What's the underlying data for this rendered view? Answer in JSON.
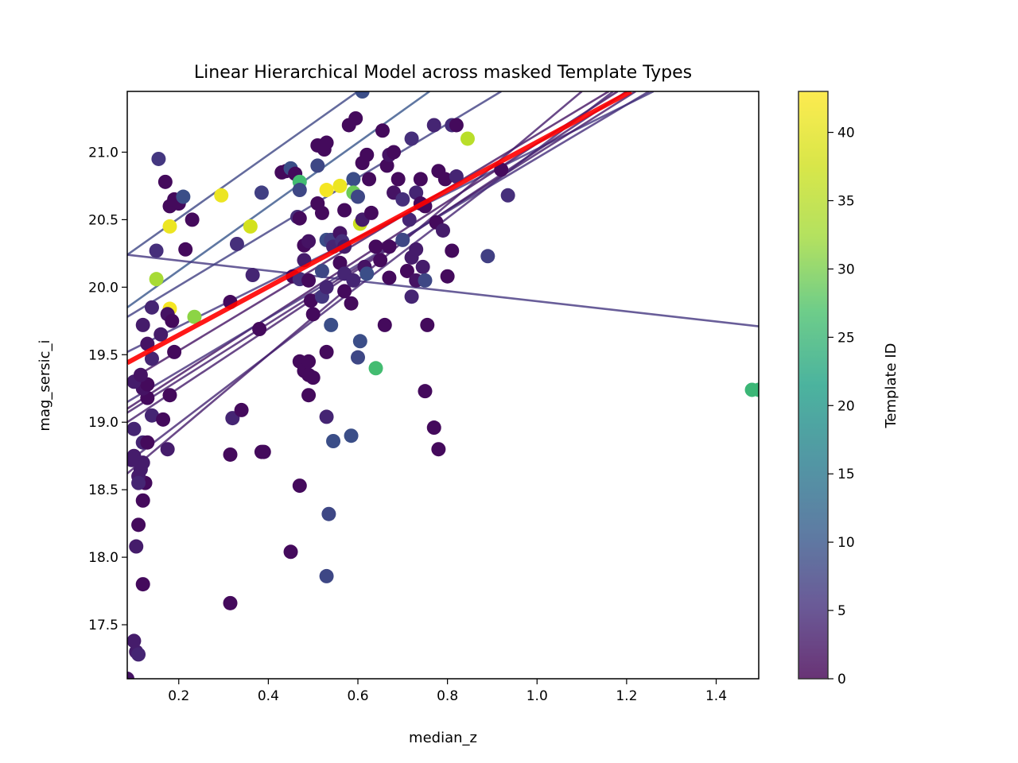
{
  "chart_data": {
    "type": "scatter",
    "title": "Linear Hierarchical Model across masked Template Types",
    "xlabel": "median_z",
    "ylabel": "mag_sersic_i",
    "xlim": [
      0.085,
      1.495
    ],
    "ylim": [
      17.1,
      21.45
    ],
    "xticks": [
      "0.2",
      "0.4",
      "0.6",
      "0.8",
      "1.0",
      "1.2",
      "1.4"
    ],
    "xtick_values": [
      0.2,
      0.4,
      0.6,
      0.8,
      1.0,
      1.2,
      1.4
    ],
    "yticks": [
      "17.5",
      "18.0",
      "18.5",
      "19.0",
      "19.5",
      "20.0",
      "20.5",
      "21.0"
    ],
    "ytick_values": [
      17.5,
      18.0,
      18.5,
      19.0,
      19.5,
      20.0,
      20.5,
      21.0
    ],
    "grid": false,
    "colorbar": {
      "label": "Template ID",
      "min": 0,
      "max": 43,
      "ticks": [
        "0",
        "5",
        "10",
        "15",
        "20",
        "25",
        "30",
        "35",
        "40"
      ],
      "tick_values": [
        0,
        5,
        10,
        15,
        20,
        25,
        30,
        35,
        40
      ],
      "colormap": "viridis"
    },
    "points": [
      [
        0.085,
        17.1,
        2
      ],
      [
        0.1,
        17.38,
        3
      ],
      [
        0.105,
        17.3,
        3
      ],
      [
        0.11,
        17.28,
        4
      ],
      [
        0.12,
        17.8,
        1
      ],
      [
        0.105,
        18.08,
        3
      ],
      [
        0.11,
        18.24,
        1
      ],
      [
        0.12,
        18.42,
        1
      ],
      [
        0.125,
        18.55,
        1
      ],
      [
        0.11,
        18.6,
        3
      ],
      [
        0.115,
        18.65,
        3
      ],
      [
        0.12,
        18.7,
        3
      ],
      [
        0.1,
        18.75,
        3
      ],
      [
        0.095,
        18.72,
        3
      ],
      [
        0.11,
        18.55,
        4
      ],
      [
        0.12,
        18.85,
        4
      ],
      [
        0.13,
        18.85,
        1
      ],
      [
        0.1,
        18.95,
        4
      ],
      [
        0.14,
        19.05,
        4
      ],
      [
        0.13,
        19.18,
        1
      ],
      [
        0.12,
        19.25,
        2
      ],
      [
        0.13,
        19.28,
        1
      ],
      [
        0.1,
        19.3,
        3
      ],
      [
        0.115,
        19.35,
        2
      ],
      [
        0.14,
        19.47,
        4
      ],
      [
        0.13,
        19.58,
        2
      ],
      [
        0.12,
        19.72,
        3
      ],
      [
        0.14,
        19.85,
        4
      ],
      [
        0.15,
        20.27,
        5
      ],
      [
        0.155,
        20.95,
        6
      ],
      [
        0.17,
        20.78,
        1
      ],
      [
        0.18,
        20.45,
        41
      ],
      [
        0.18,
        20.6,
        1
      ],
      [
        0.19,
        20.65,
        1
      ],
      [
        0.2,
        20.62,
        1
      ],
      [
        0.21,
        20.67,
        9
      ],
      [
        0.215,
        20.28,
        1
      ],
      [
        0.23,
        20.5,
        1
      ],
      [
        0.15,
        20.06,
        33
      ],
      [
        0.18,
        19.84,
        42
      ],
      [
        0.175,
        19.8,
        2
      ],
      [
        0.185,
        19.75,
        1
      ],
      [
        0.16,
        19.65,
        3
      ],
      [
        0.19,
        19.52,
        1
      ],
      [
        0.18,
        19.2,
        1
      ],
      [
        0.165,
        19.02,
        1
      ],
      [
        0.175,
        18.8,
        3
      ],
      [
        0.235,
        19.78,
        31
      ],
      [
        0.295,
        20.68,
        41
      ],
      [
        0.315,
        19.89,
        1
      ],
      [
        0.33,
        20.32,
        5
      ],
      [
        0.32,
        19.03,
        4
      ],
      [
        0.34,
        19.09,
        1
      ],
      [
        0.315,
        18.76,
        1
      ],
      [
        0.315,
        17.66,
        1
      ],
      [
        0.36,
        20.45,
        38
      ],
      [
        0.365,
        20.09,
        4
      ],
      [
        0.38,
        19.69,
        1
      ],
      [
        0.385,
        20.7,
        7
      ],
      [
        0.385,
        18.78,
        1
      ],
      [
        0.39,
        18.78,
        1
      ],
      [
        0.43,
        20.85,
        1
      ],
      [
        0.44,
        20.86,
        1
      ],
      [
        0.45,
        20.88,
        9
      ],
      [
        0.46,
        20.84,
        1
      ],
      [
        0.47,
        20.78,
        26
      ],
      [
        0.47,
        20.72,
        8
      ],
      [
        0.465,
        20.52,
        5
      ],
      [
        0.47,
        20.51,
        1
      ],
      [
        0.48,
        20.31,
        1
      ],
      [
        0.49,
        20.34,
        2
      ],
      [
        0.455,
        20.08,
        1
      ],
      [
        0.47,
        20.06,
        5
      ],
      [
        0.48,
        20.2,
        3
      ],
      [
        0.49,
        20.05,
        1
      ],
      [
        0.495,
        19.9,
        1
      ],
      [
        0.5,
        19.8,
        1
      ],
      [
        0.48,
        19.38,
        1
      ],
      [
        0.49,
        19.35,
        1
      ],
      [
        0.5,
        19.33,
        1
      ],
      [
        0.47,
        19.45,
        1
      ],
      [
        0.49,
        19.45,
        1
      ],
      [
        0.49,
        19.2,
        1
      ],
      [
        0.47,
        18.53,
        1
      ],
      [
        0.45,
        18.04,
        1
      ],
      [
        0.53,
        17.86,
        8
      ],
      [
        0.535,
        18.32,
        8
      ],
      [
        0.53,
        19.04,
        4
      ],
      [
        0.545,
        18.86,
        9
      ],
      [
        0.53,
        19.52,
        1
      ],
      [
        0.54,
        19.72,
        9
      ],
      [
        0.52,
        19.93,
        6
      ],
      [
        0.53,
        20.0,
        4
      ],
      [
        0.52,
        20.12,
        8
      ],
      [
        0.53,
        20.35,
        9
      ],
      [
        0.54,
        20.35,
        7
      ],
      [
        0.545,
        20.3,
        4
      ],
      [
        0.52,
        20.55,
        1
      ],
      [
        0.51,
        20.62,
        1
      ],
      [
        0.525,
        21.02,
        1
      ],
      [
        0.53,
        21.07,
        1
      ],
      [
        0.51,
        21.05,
        1
      ],
      [
        0.51,
        20.9,
        8
      ],
      [
        0.53,
        20.72,
        42
      ],
      [
        0.56,
        20.75,
        41
      ],
      [
        0.57,
        20.57,
        1
      ],
      [
        0.56,
        20.4,
        2
      ],
      [
        0.565,
        20.34,
        5
      ],
      [
        0.57,
        20.3,
        3
      ],
      [
        0.56,
        20.18,
        1
      ],
      [
        0.57,
        20.1,
        4
      ],
      [
        0.57,
        19.97,
        1
      ],
      [
        0.585,
        19.88,
        1
      ],
      [
        0.59,
        20.05,
        4
      ],
      [
        0.585,
        18.9,
        9
      ],
      [
        0.59,
        20.8,
        9
      ],
      [
        0.59,
        20.7,
        29
      ],
      [
        0.6,
        20.67,
        8
      ],
      [
        0.605,
        20.47,
        37
      ],
      [
        0.61,
        20.5,
        3
      ],
      [
        0.615,
        20.15,
        2
      ],
      [
        0.62,
        20.1,
        9
      ],
      [
        0.605,
        19.6,
        9
      ],
      [
        0.6,
        19.48,
        8
      ],
      [
        0.64,
        19.4,
        26
      ],
      [
        0.58,
        21.2,
        1
      ],
      [
        0.595,
        21.25,
        1
      ],
      [
        0.61,
        21.45,
        9
      ],
      [
        0.61,
        20.92,
        1
      ],
      [
        0.62,
        20.98,
        1
      ],
      [
        0.625,
        20.8,
        1
      ],
      [
        0.63,
        20.55,
        1
      ],
      [
        0.64,
        20.3,
        1
      ],
      [
        0.65,
        20.2,
        1
      ],
      [
        0.655,
        21.16,
        1
      ],
      [
        0.66,
        19.72,
        1
      ],
      [
        0.67,
        20.3,
        1
      ],
      [
        0.67,
        20.07,
        1
      ],
      [
        0.665,
        20.9,
        1
      ],
      [
        0.67,
        20.98,
        2
      ],
      [
        0.68,
        21.0,
        1
      ],
      [
        0.68,
        20.7,
        2
      ],
      [
        0.69,
        20.8,
        1
      ],
      [
        0.7,
        20.35,
        8
      ],
      [
        0.7,
        20.65,
        5
      ],
      [
        0.71,
        20.12,
        1
      ],
      [
        0.715,
        20.5,
        4
      ],
      [
        0.72,
        20.22,
        3
      ],
      [
        0.72,
        19.93,
        4
      ],
      [
        0.72,
        21.1,
        5
      ],
      [
        0.73,
        20.7,
        4
      ],
      [
        0.73,
        20.05,
        2
      ],
      [
        0.73,
        20.28,
        3
      ],
      [
        0.74,
        20.62,
        1
      ],
      [
        0.74,
        20.8,
        1
      ],
      [
        0.745,
        20.15,
        3
      ],
      [
        0.75,
        20.6,
        1
      ],
      [
        0.75,
        20.05,
        8
      ],
      [
        0.755,
        19.72,
        1
      ],
      [
        0.75,
        19.23,
        1
      ],
      [
        0.77,
        18.96,
        1
      ],
      [
        0.78,
        18.8,
        1
      ],
      [
        0.77,
        21.2,
        4
      ],
      [
        0.78,
        20.86,
        1
      ],
      [
        0.775,
        20.48,
        1
      ],
      [
        0.79,
        20.42,
        3
      ],
      [
        0.795,
        20.8,
        1
      ],
      [
        0.8,
        20.08,
        1
      ],
      [
        0.81,
        20.27,
        1
      ],
      [
        0.81,
        21.2,
        5
      ],
      [
        0.82,
        21.2,
        1
      ],
      [
        0.82,
        20.82,
        4
      ],
      [
        0.845,
        21.1,
        35
      ],
      [
        0.89,
        20.23,
        7
      ],
      [
        0.92,
        20.87,
        1
      ],
      [
        0.935,
        20.68,
        5
      ],
      [
        1.48,
        19.24,
        25
      ],
      [
        1.495,
        19.24,
        25
      ]
    ],
    "fit_lines": [
      {
        "t": 10,
        "x": [
          0.085,
          0.76
        ],
        "y": [
          19.85,
          21.45
        ]
      },
      {
        "t": 8,
        "x": [
          0.085,
          0.6
        ],
        "y": [
          20.24,
          21.45
        ]
      },
      {
        "t": 6,
        "x": [
          0.085,
          1.495
        ],
        "y": [
          20.24,
          19.71
        ]
      },
      {
        "t": 7,
        "x": [
          0.085,
          0.92
        ],
        "y": [
          19.78,
          21.45
        ]
      },
      {
        "t": 6,
        "x": [
          0.085,
          1.26
        ],
        "y": [
          19.52,
          21.45
        ]
      },
      {
        "t": 3,
        "x": [
          0.085,
          1.22
        ],
        "y": [
          19.07,
          21.45
        ]
      },
      {
        "t": 3,
        "x": [
          0.085,
          1.2
        ],
        "y": [
          19.0,
          21.45
        ]
      },
      {
        "t": 2,
        "x": [
          0.085,
          1.16
        ],
        "y": [
          19.3,
          21.45
        ]
      },
      {
        "t": 2,
        "x": [
          0.085,
          1.18
        ],
        "y": [
          19.1,
          21.45
        ]
      },
      {
        "t": 4,
        "x": [
          0.085,
          1.17
        ],
        "y": [
          18.7,
          21.45
        ]
      },
      {
        "t": 3,
        "x": [
          0.085,
          1.1
        ],
        "y": [
          18.62,
          21.45
        ]
      },
      {
        "t": 5,
        "x": [
          0.085,
          1.25
        ],
        "y": [
          19.15,
          21.45
        ]
      }
    ],
    "mean_fit": {
      "x": [
        0.085,
        1.21
      ],
      "y": [
        19.44,
        21.45
      ],
      "color": "#ff0000"
    }
  }
}
